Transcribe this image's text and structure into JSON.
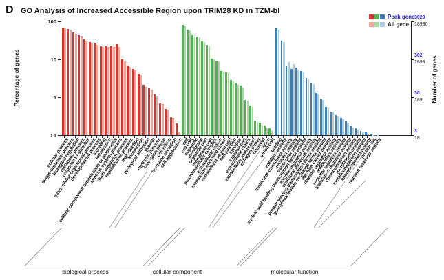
{
  "panel_label": "D",
  "title": "GO Analysis of Increased Accessible Region upon TRIM28 KD in TZM-bl",
  "legend": {
    "peak_label": "Peak gene",
    "all_label": "All gene"
  },
  "axes": {
    "left_title": "Percentage of genes",
    "right_title": "Number of genes"
  },
  "chart_data": {
    "type": "bar",
    "title": "GO Analysis of Increased Accessible Region upon TRIM28 KD in TZM-bl",
    "ylabel": "Percentage of genes",
    "y2label": "Number of genes",
    "yscale": "log",
    "ylim": [
      0.1,
      100
    ],
    "yticks": [
      "100",
      "10",
      "1",
      "0.1"
    ],
    "y2ticks_peak": [
      "3029",
      "302",
      "30",
      "3"
    ],
    "y2ticks_all": [
      "18930",
      "1893",
      "189",
      "18"
    ],
    "legend": [
      "Peak gene",
      "All gene"
    ],
    "colors": {
      "peak": [
        "#d7342f",
        "#53b153",
        "#3d7fb3"
      ],
      "all": [
        "#f3a49e",
        "#aad8a2",
        "#aecfe2"
      ]
    },
    "groups": [
      {
        "name": "biological process",
        "categories": [
          "cellular process",
          "single-organism process",
          "biological regulation",
          "metabolic process",
          "response to stimulus",
          "multicellular organismal process",
          "developmental process",
          "signaling",
          "localization",
          "cellular component organization or biogenesis",
          "immune system process",
          "multi-organism process",
          "reproductive process",
          "reproduction",
          "locomotion",
          "biological adhesion",
          "growth",
          "rhythmic process",
          "biological phase",
          "cell killing",
          "hormone secretion",
          "cell aggregation"
        ],
        "peak": [
          69,
          62,
          52,
          44,
          34,
          28,
          27,
          22,
          22.5,
          22.5,
          25,
          10,
          6.9,
          5.6,
          4.2,
          2.1,
          1.7,
          1.2,
          0.7,
          0.5,
          0.3,
          0.2
        ],
        "all": [
          66,
          58,
          48,
          41,
          31,
          26,
          24,
          21,
          21,
          21.5,
          21,
          9,
          6.4,
          5.2,
          3.9,
          1.9,
          1.6,
          1.1,
          0.65,
          0.45,
          0.28,
          0.12
        ]
      },
      {
        "name": "cellular component",
        "categories": [
          "cell",
          "cell part",
          "organelle",
          "membrane",
          "organelle part",
          "membrane part",
          "macromolecular complex",
          "extracellular region",
          "membrane-enclosed lumen",
          "extracellular region part",
          "cell junction",
          "synapse",
          "synapse part",
          "extracellular matrix",
          "extracellular matrix part",
          "collagen trimer",
          "nucleoid",
          "virion",
          "virion part"
        ],
        "peak": [
          80,
          60,
          43,
          40,
          30,
          24,
          10.5,
          9.2,
          4.9,
          4.6,
          2.8,
          2.3,
          2.0,
          0.85,
          0.6,
          0.24,
          0.21,
          0.18,
          0.15
        ],
        "all": [
          78,
          57,
          40,
          38,
          28,
          22,
          10,
          8.8,
          4.6,
          4.4,
          2.6,
          2.1,
          1.8,
          0.8,
          0.55,
          0.22,
          0.18,
          0.15,
          0.13
        ]
      },
      {
        "name": "molecular function",
        "categories": [
          "binding",
          "catalytic activity",
          "molecular transducer activity",
          "receptor activity",
          "transporter activity",
          "nucleic acid binding transcription factor activity",
          "enzyme regulator activity",
          "structural molecule activity",
          "protein binding transcription factor activity",
          "guanyl-nucleotide exchange factor activity",
          "electron carrier activity",
          "channel regulator activity",
          "antioxidant activity",
          "receptor regulator activity",
          "translation regulator activity",
          "chemoattractant activity",
          "morphogen activity",
          "metallochaperone activity",
          "chemorepellent activity",
          "protein tag",
          "nutrient reservoir activity"
        ],
        "peak": [
          66,
          31,
          6.5,
          5.6,
          6.0,
          4.9,
          3.2,
          2.4,
          1.3,
          0.92,
          0.56,
          0.42,
          0.34,
          0.28,
          0.23,
          0.17,
          0.15,
          0.13,
          0.12,
          0.11,
          0.1
        ],
        "all": [
          61,
          28,
          8.6,
          7.4,
          5.3,
          4.6,
          3.0,
          2.2,
          1.2,
          0.85,
          0.52,
          0.4,
          0.32,
          0.26,
          0.21,
          0.16,
          0.14,
          0.12,
          0.11,
          0.1,
          0.1
        ]
      }
    ]
  }
}
